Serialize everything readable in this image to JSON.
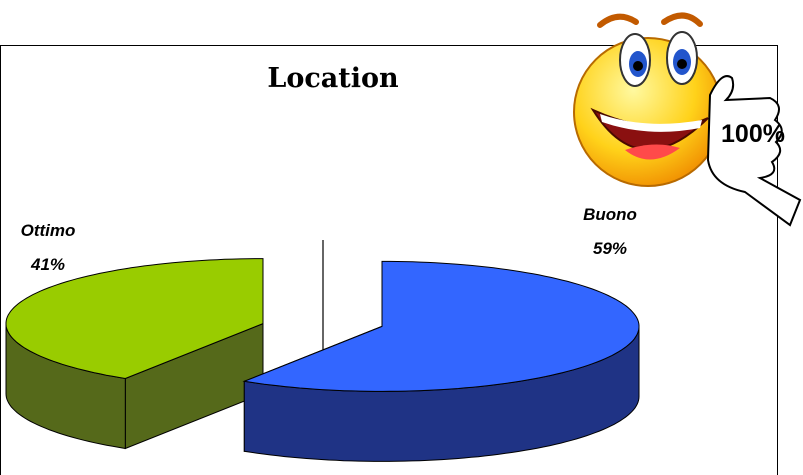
{
  "chart_data": {
    "type": "pie3d",
    "title": "Location",
    "categories": [
      "Ottimo",
      "Buono"
    ],
    "values": [
      41,
      59
    ],
    "value_labels": [
      "41%",
      "59%"
    ],
    "colors": [
      "#99cc00",
      "#3366ff"
    ],
    "side_colors": [
      "#55691a",
      "#1f3385"
    ],
    "annotation": "100%"
  }
}
